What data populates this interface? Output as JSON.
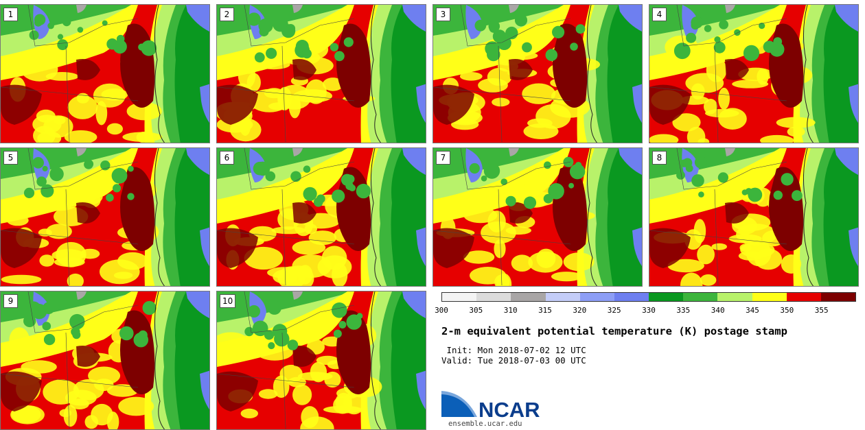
{
  "panels": [
    {
      "label": "1"
    },
    {
      "label": "2"
    },
    {
      "label": "3"
    },
    {
      "label": "4"
    },
    {
      "label": "5"
    },
    {
      "label": "6"
    },
    {
      "label": "7"
    },
    {
      "label": "8"
    },
    {
      "label": "9"
    },
    {
      "label": "10"
    }
  ],
  "colorbar": {
    "ticks": [
      "300",
      "305",
      "310",
      "315",
      "320",
      "325",
      "330",
      "335",
      "340",
      "345",
      "350",
      "355"
    ],
    "colors": [
      "#f4f4f4",
      "#dcdcdc",
      "#a9a6a6",
      "#c4cdf8",
      "#8d9ef6",
      "#6e7ff0",
      "#0a9820",
      "#3cb53c",
      "#b8f26a",
      "#ffff18",
      "#e60000",
      "#7d0000"
    ]
  },
  "title": "2-m equivalent potential temperature (K) postage stamp",
  "init_line": " Init: Mon 2018-07-02 12 UTC",
  "valid_line": "Valid: Tue 2018-07-03 00 UTC",
  "logo": {
    "text": "NCAR",
    "url": "ensemble.ucar.edu"
  },
  "colors": {
    "ocean_green": "#0a9820",
    "lake_blue": "#6e7ff0",
    "hot_red": "#e60000",
    "dark_red": "#7d0000"
  }
}
